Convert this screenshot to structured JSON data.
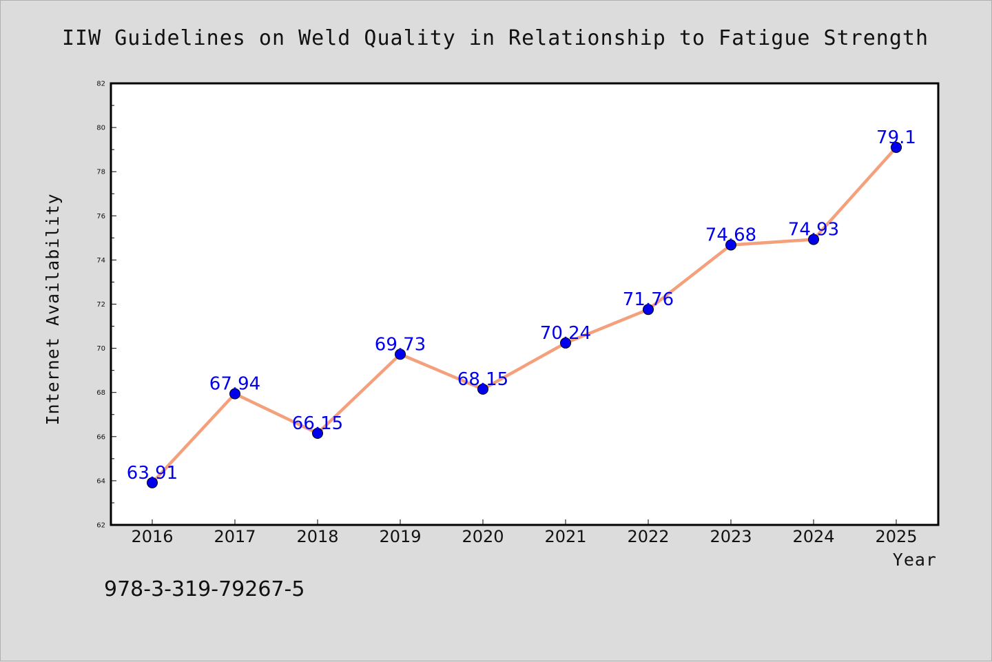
{
  "colors": {
    "background": "#dcdcdc",
    "plot_background": "#ffffff",
    "line": "#f4a07c",
    "marker": "#0000ee",
    "data_label": "#0000ee"
  },
  "footer": {
    "isbn": "978-3-319-79267-5"
  },
  "chart_data": {
    "type": "line",
    "title": "IIW Guidelines on Weld Quality in Relationship to Fatigue Strength",
    "xlabel": "Year",
    "ylabel": "Internet Availability",
    "categories": [
      "2016",
      "2017",
      "2018",
      "2019",
      "2020",
      "2021",
      "2022",
      "2023",
      "2024",
      "2025"
    ],
    "series": [
      {
        "values": [
          63.91,
          67.94,
          66.15,
          69.73,
          68.15,
          70.24,
          71.76,
          74.68,
          74.93,
          79.1
        ],
        "labels": [
          "63.91",
          "67.94",
          "66.15",
          "69.73",
          "68.15",
          "70.24",
          "71.76",
          "74.68",
          "74.93",
          "79.1"
        ]
      }
    ],
    "ylim": [
      62,
      82
    ],
    "yticks": [
      "62",
      "64",
      "66",
      "68",
      "70",
      "72",
      "74",
      "76",
      "78",
      "80",
      "82"
    ],
    "grid": false,
    "legend": "none"
  }
}
